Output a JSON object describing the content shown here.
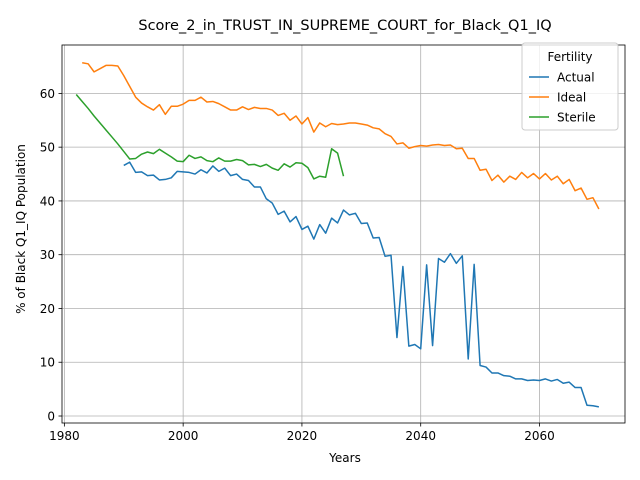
{
  "chart_data": {
    "type": "line",
    "title": "Score_2_in_TRUST_IN_SUPREME_COURT_for_Black_Q1_IQ",
    "xlabel": "Years",
    "ylabel": "% of Black Q1_IQ Population",
    "xlim": [
      1979.6,
      2074.4
    ],
    "ylim": [
      -1.3,
      69.0
    ],
    "xticks": [
      1980,
      2000,
      2020,
      2040,
      2060
    ],
    "yticks": [
      0,
      10,
      20,
      30,
      40,
      50,
      60
    ],
    "grid": true,
    "legend": {
      "title": "Fertility",
      "placement": "top-right"
    },
    "series": [
      {
        "name": "Actual",
        "color": "#1f77b4",
        "x": [
          1990,
          1991,
          1992,
          1993,
          1994,
          1995,
          1996,
          1997,
          1998,
          1999,
          2000,
          2001,
          2002,
          2003,
          2004,
          2005,
          2006,
          2007,
          2008,
          2009,
          2010,
          2011,
          2012,
          2013,
          2014,
          2015,
          2016,
          2017,
          2018,
          2019,
          2020,
          2021,
          2022,
          2023,
          2024,
          2025,
          2026,
          2027,
          2028,
          2029,
          2030,
          2031,
          2032,
          2033,
          2034,
          2035,
          2036,
          2037,
          2038,
          2039,
          2040,
          2041,
          2042,
          2043,
          2044,
          2045,
          2046,
          2047,
          2048,
          2049,
          2050,
          2051,
          2052,
          2053,
          2054,
          2055,
          2056,
          2057,
          2058,
          2059,
          2060,
          2061,
          2062,
          2063,
          2064,
          2065,
          2066,
          2067,
          2068,
          2069,
          2070
        ],
        "values": [
          46.6,
          47.2,
          45.3,
          45.4,
          44.7,
          44.8,
          43.9,
          44.0,
          44.3,
          45.5,
          45.4,
          45.3,
          45.0,
          45.8,
          45.2,
          46.5,
          45.5,
          46.1,
          44.7,
          45.0,
          44.0,
          43.8,
          42.6,
          42.6,
          40.4,
          39.6,
          37.5,
          38.1,
          36.1,
          37.1,
          34.7,
          35.3,
          32.9,
          35.6,
          34.0,
          36.8,
          35.9,
          38.3,
          37.4,
          37.7,
          35.8,
          35.9,
          33.1,
          33.2,
          29.7,
          29.9,
          14.6,
          27.8,
          13.0,
          13.3,
          12.5,
          28.1,
          13.1,
          29.3,
          28.6,
          30.2,
          28.4,
          29.8,
          10.6,
          28.2,
          9.4,
          9.1,
          8.0,
          8.0,
          7.5,
          7.4,
          6.9,
          6.9,
          6.6,
          6.7,
          6.6,
          6.9,
          6.5,
          6.8,
          6.1,
          6.3,
          5.3,
          5.3,
          2.0,
          1.9,
          1.7
        ]
      },
      {
        "name": "Ideal",
        "color": "#ff7f0e",
        "x": [
          1983,
          1984,
          1985,
          1986,
          1987,
          1988,
          1989,
          1990,
          1991,
          1992,
          1993,
          1994,
          1995,
          1996,
          1997,
          1998,
          1999,
          2000,
          2001,
          2002,
          2003,
          2004,
          2005,
          2006,
          2007,
          2008,
          2009,
          2010,
          2011,
          2012,
          2013,
          2014,
          2015,
          2016,
          2017,
          2018,
          2019,
          2020,
          2021,
          2022,
          2023,
          2024,
          2025,
          2026,
          2027,
          2028,
          2029,
          2030,
          2031,
          2032,
          2033,
          2034,
          2035,
          2036,
          2037,
          2038,
          2039,
          2040,
          2041,
          2042,
          2043,
          2044,
          2045,
          2046,
          2047,
          2048,
          2049,
          2050,
          2051,
          2052,
          2053,
          2054,
          2055,
          2056,
          2057,
          2058,
          2059,
          2060,
          2061,
          2062,
          2063,
          2064,
          2065,
          2066,
          2067,
          2068,
          2069,
          2070
        ],
        "values": [
          65.7,
          65.5,
          64.0,
          64.6,
          65.2,
          65.2,
          65.1,
          63.3,
          61.3,
          59.3,
          58.2,
          57.5,
          56.9,
          57.9,
          56.1,
          57.6,
          57.6,
          58.0,
          58.7,
          58.7,
          59.3,
          58.4,
          58.5,
          58.1,
          57.5,
          56.9,
          56.9,
          57.5,
          57.0,
          57.4,
          57.2,
          57.2,
          56.9,
          55.9,
          56.3,
          55.0,
          55.8,
          54.3,
          55.5,
          52.8,
          54.5,
          53.8,
          54.4,
          54.2,
          54.3,
          54.5,
          54.5,
          54.3,
          54.1,
          53.6,
          53.4,
          52.5,
          52.0,
          50.6,
          50.8,
          49.8,
          50.1,
          50.3,
          50.2,
          50.4,
          50.5,
          50.3,
          50.4,
          49.7,
          49.8,
          47.9,
          47.9,
          45.7,
          45.9,
          43.8,
          44.8,
          43.5,
          44.6,
          44.0,
          45.3,
          44.3,
          45.1,
          44.1,
          45.1,
          43.9,
          44.6,
          43.2,
          44.0,
          41.9,
          42.4,
          40.3,
          40.6,
          38.5
        ]
      },
      {
        "name": "Sterile",
        "color": "#2ca02c",
        "x": [
          1982,
          1983,
          1984,
          1985,
          1986,
          1987,
          1988,
          1989,
          1990,
          1991,
          1992,
          1993,
          1994,
          1995,
          1996,
          1997,
          1998,
          1999,
          2000,
          2001,
          2002,
          2003,
          2004,
          2005,
          2006,
          2007,
          2008,
          2009,
          2010,
          2011,
          2012,
          2013,
          2014,
          2015,
          2016,
          2017,
          2018,
          2019,
          2020,
          2021,
          2022,
          2023,
          2024,
          2025,
          2026,
          2027
        ],
        "values": [
          59.8,
          58.5,
          57.2,
          55.8,
          54.5,
          53.2,
          51.9,
          50.6,
          49.2,
          47.8,
          47.9,
          48.7,
          49.1,
          48.8,
          49.6,
          48.9,
          48.2,
          47.4,
          47.3,
          48.5,
          47.9,
          48.2,
          47.5,
          47.3,
          48.0,
          47.4,
          47.4,
          47.7,
          47.5,
          46.7,
          46.8,
          46.4,
          46.8,
          46.1,
          45.7,
          46.9,
          46.3,
          47.1,
          47.0,
          46.2,
          44.1,
          44.6,
          44.4,
          49.7,
          48.9,
          44.6
        ]
      }
    ]
  }
}
